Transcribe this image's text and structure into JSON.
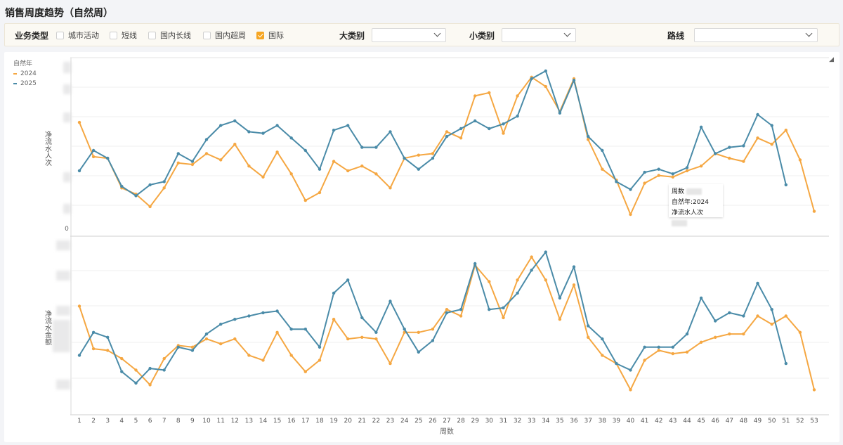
{
  "title": "销售周度趋势（自然周）",
  "filters": {
    "business_type_label": "业务类型",
    "checkboxes": [
      {
        "label": "城市活动",
        "checked": false
      },
      {
        "label": "短线",
        "checked": false
      },
      {
        "label": "国内长线",
        "checked": false
      },
      {
        "label": "国内超周",
        "checked": false
      },
      {
        "label": "国际",
        "checked": true
      }
    ],
    "category_large_label": "大类别",
    "category_large_value": "",
    "category_small_label": "小类别",
    "category_small_value": "",
    "route_label": "路线",
    "route_value": ""
  },
  "legend": {
    "title": "自然年",
    "items": [
      {
        "name": "2024",
        "color": "#f5a742"
      },
      {
        "name": "2025",
        "color": "#4a8ba8"
      }
    ]
  },
  "tooltip": {
    "line1": "周数",
    "line2": "自然年:2024",
    "line3": "净流水人次"
  },
  "chart_data": {
    "type": "line",
    "xlabel": "周数",
    "x": [
      1,
      2,
      3,
      4,
      5,
      6,
      7,
      8,
      9,
      10,
      11,
      12,
      13,
      14,
      15,
      16,
      17,
      18,
      19,
      20,
      21,
      22,
      23,
      24,
      25,
      26,
      27,
      28,
      29,
      30,
      31,
      32,
      33,
      34,
      35,
      36,
      37,
      38,
      39,
      40,
      41,
      42,
      43,
      44,
      45,
      46,
      47,
      48,
      49,
      50,
      51,
      52,
      53
    ],
    "panels": [
      {
        "ylabel": "净流水人次",
        "y_tick_labels": [
          "0"
        ],
        "series": [
          {
            "name": "2024",
            "values": [
              68,
              46,
              45,
              26,
              22,
              14,
              26,
              42,
              41,
              48,
              44,
              54,
              40,
              33,
              49,
              35,
              18,
              23,
              43,
              37,
              40,
              35,
              26,
              45,
              47,
              48,
              62,
              58,
              85,
              87,
              61,
              85,
              97,
              91,
              75,
              96,
              57,
              38,
              31,
              9,
              29,
              34,
              33,
              37,
              40,
              48,
              45,
              43,
              58,
              54,
              63,
              44,
              11
            ]
          },
          {
            "name": "2025",
            "values": [
              37,
              50,
              45,
              27,
              21,
              28,
              30,
              48,
              43,
              57,
              66,
              69,
              62,
              61,
              66,
              58,
              50,
              38,
              63,
              66,
              52,
              52,
              62,
              45,
              38,
              45,
              59,
              64,
              69,
              64,
              67,
              72,
              96,
              101,
              74,
              95,
              59,
              50,
              30,
              25,
              36,
              38,
              35,
              39,
              65,
              48,
              52,
              53,
              73,
              66,
              28
            ]
          }
        ]
      },
      {
        "ylabel": "净流水金额",
        "y_tick_labels": [],
        "series": [
          {
            "name": "2024",
            "values": [
              62,
              36,
              35,
              30,
              23,
              14,
              30,
              38,
              37,
              42,
              39,
              42,
              32,
              29,
              46,
              32,
              22,
              29,
              54,
              42,
              43,
              42,
              27,
              46,
              46,
              48,
              60,
              56,
              87,
              77,
              55,
              78,
              92,
              78,
              54,
              75,
              43,
              32,
              27,
              11,
              29,
              35,
              33,
              34,
              40,
              43,
              45,
              45,
              56,
              51,
              56,
              46,
              11
            ]
          },
          {
            "name": "2025",
            "values": [
              32,
              46,
              43,
              22,
              15,
              24,
              23,
              37,
              35,
              45,
              51,
              54,
              56,
              58,
              59,
              48,
              48,
              37,
              70,
              78,
              55,
              46,
              65,
              48,
              34,
              41,
              58,
              60,
              88,
              60,
              61,
              70,
              84,
              95,
              67,
              86,
              50,
              42,
              27,
              23,
              37,
              37,
              37,
              45,
              67,
              53,
              58,
              56,
              76,
              60,
              27
            ]
          }
        ]
      }
    ]
  }
}
